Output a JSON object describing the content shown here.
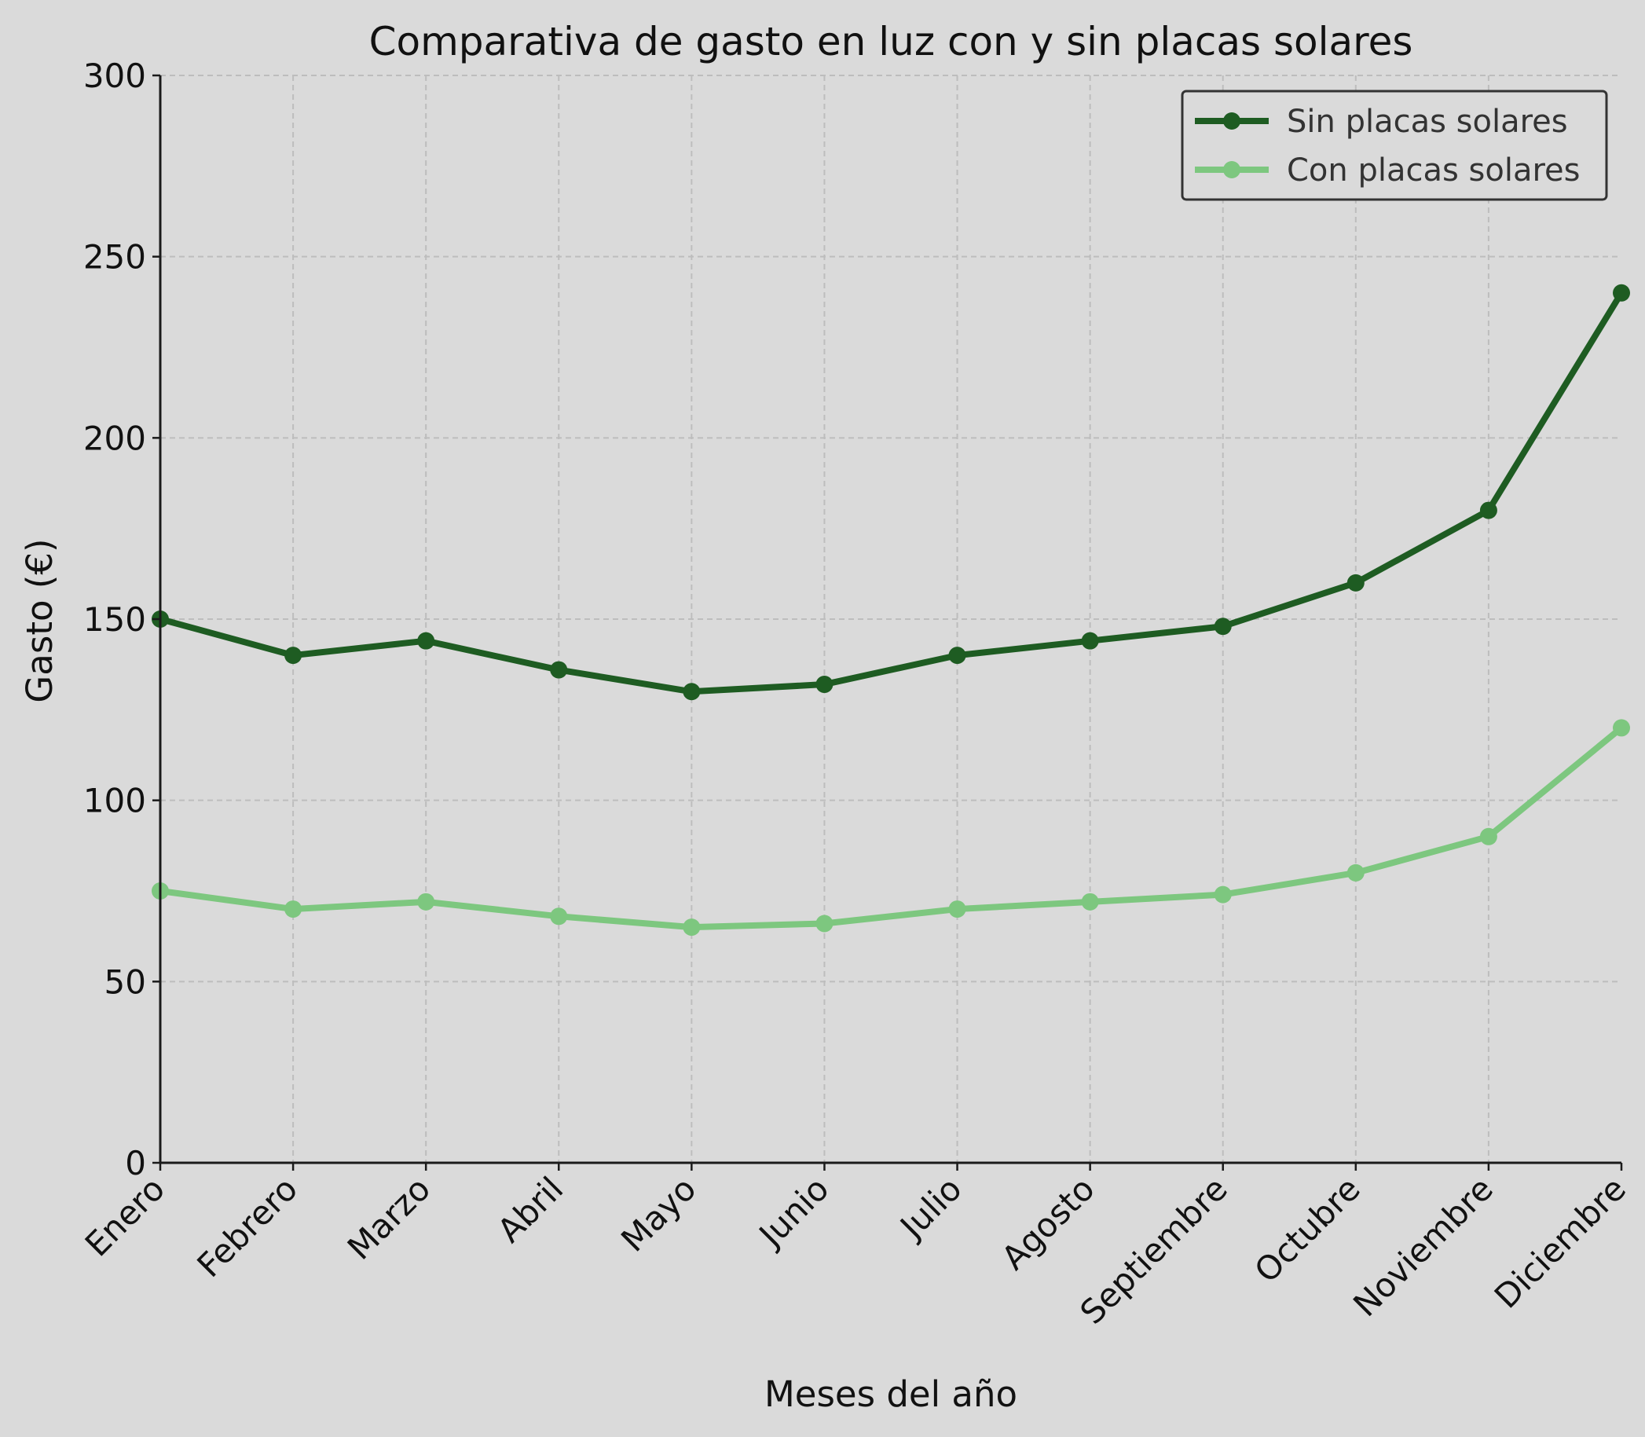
{
  "chart_data": {
    "type": "line",
    "title": "Comparativa de gasto en luz con y sin placas solares",
    "xlabel": "Meses del año",
    "ylabel": "Gasto (€)",
    "categories": [
      "Enero",
      "Febrero",
      "Marzo",
      "Abril",
      "Mayo",
      "Junio",
      "Julio",
      "Agosto",
      "Septiembre",
      "Octubre",
      "Noviembre",
      "Diciembre"
    ],
    "ylim": [
      0,
      300
    ],
    "yticks": [
      0,
      50,
      100,
      150,
      200,
      250,
      300
    ],
    "grid": true,
    "legend_position": "top-right",
    "series": [
      {
        "name": "Sin placas solares",
        "color": "#1e5c22",
        "values": [
          150,
          140,
          144,
          136,
          130,
          132,
          140,
          144,
          148,
          160,
          180,
          240
        ]
      },
      {
        "name": "Con placas solares",
        "color": "#7dc77f",
        "values": [
          75,
          70,
          72,
          68,
          65,
          66,
          70,
          72,
          74,
          80,
          90,
          120
        ]
      }
    ]
  }
}
